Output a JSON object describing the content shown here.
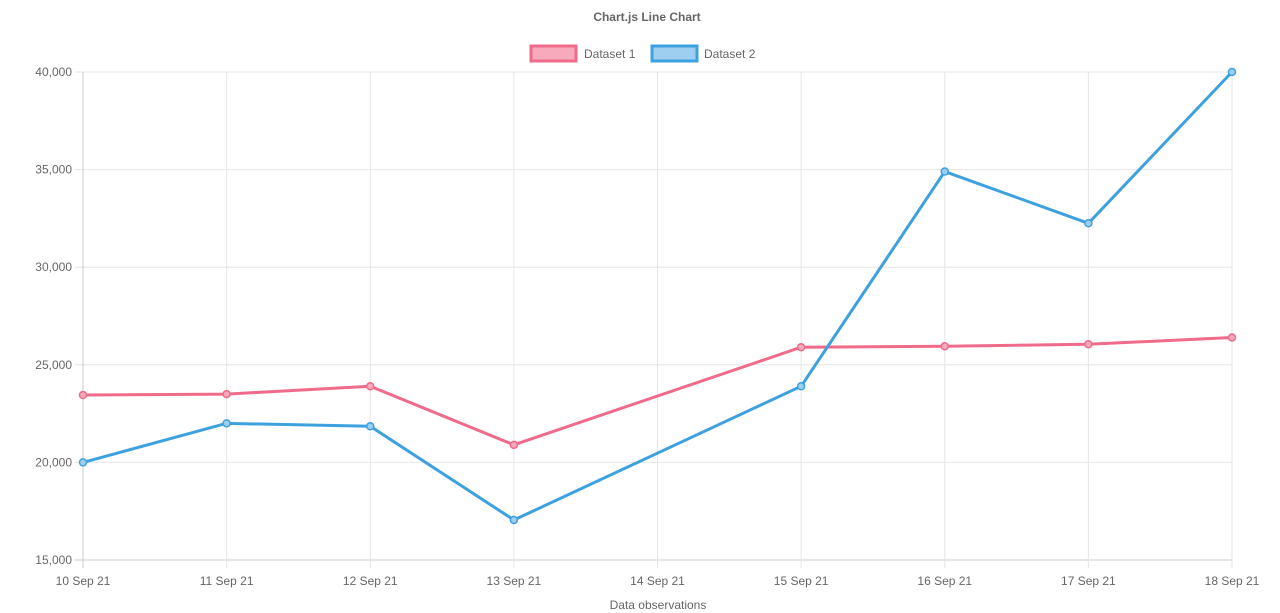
{
  "chart_data": {
    "type": "line",
    "title": "Chart.js Line Chart",
    "xlabel": "Data observations",
    "ylabel": "",
    "x": [
      "10 Sep 21",
      "11 Sep 21",
      "12 Sep 21",
      "13 Sep 21",
      "14 Sep 21",
      "15 Sep 21",
      "16 Sep 21",
      "17 Sep 21",
      "18 Sep 21"
    ],
    "ylim": [
      15000,
      40000
    ],
    "yticks": [
      15000,
      20000,
      25000,
      30000,
      35000,
      40000
    ],
    "ytick_labels": [
      "15,000",
      "20,000",
      "25,000",
      "30,000",
      "35,000",
      "40,000"
    ],
    "grid": true,
    "legend_position": "top",
    "series": [
      {
        "name": "Dataset 1",
        "color": "#ef6b89",
        "fill": "#f7aabb",
        "points": [
          {
            "x": "10 Sep 21",
            "y": 23450
          },
          {
            "x": "11 Sep 21",
            "y": 23500
          },
          {
            "x": "12 Sep 21",
            "y": 23900
          },
          {
            "x": "13 Sep 21",
            "y": 20900
          },
          {
            "x": "15 Sep 21",
            "y": 25900
          },
          {
            "x": "16 Sep 21",
            "y": 25950
          },
          {
            "x": "17 Sep 21",
            "y": 26050
          },
          {
            "x": "18 Sep 21",
            "y": 26400
          }
        ]
      },
      {
        "name": "Dataset 2",
        "color": "#3da1e0",
        "fill": "#9ecff0",
        "points": [
          {
            "x": "10 Sep 21",
            "y": 20000
          },
          {
            "x": "11 Sep 21",
            "y": 22000
          },
          {
            "x": "12 Sep 21",
            "y": 21850
          },
          {
            "x": "13 Sep 21",
            "y": 17050
          },
          {
            "x": "15 Sep 21",
            "y": 23900
          },
          {
            "x": "16 Sep 21",
            "y": 34900
          },
          {
            "x": "17 Sep 21",
            "y": 32250
          },
          {
            "x": "18 Sep 21",
            "y": 40000
          }
        ]
      }
    ]
  }
}
